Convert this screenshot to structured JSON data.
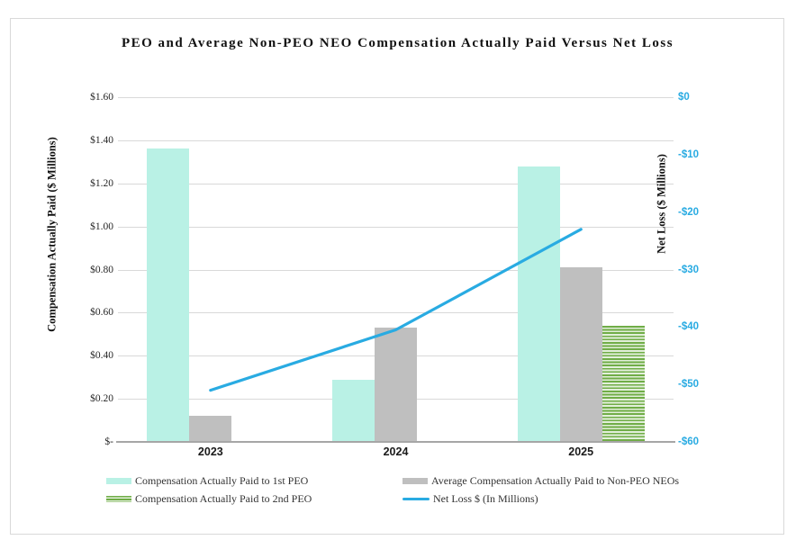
{
  "chart_data": {
    "type": "combo-bar-line",
    "title": "PEO and Average Non-PEO NEO Compensation Actually Paid Versus Net Loss",
    "categories": [
      "2023",
      "2024",
      "2025"
    ],
    "series": [
      {
        "key": "peo1",
        "name": "Compensation Actually Paid to 1st PEO",
        "type": "bar",
        "axis": "left",
        "color": "#B9F1E5",
        "values": [
          1.36,
          0.29,
          1.28
        ]
      },
      {
        "key": "nonpeo",
        "name": "Average Compensation Actually Paid to Non-PEO NEOs",
        "type": "bar",
        "axis": "left",
        "color": "#BFBFBF",
        "values": [
          0.12,
          0.53,
          0.81
        ]
      },
      {
        "key": "peo2",
        "name": "Compensation Actually Paid to 2nd PEO",
        "type": "bar",
        "axis": "left",
        "color": "#70AD47",
        "pattern": "horizontal-stripes",
        "pattern_bg": "#E2EFDA",
        "values": [
          0,
          0,
          0.54
        ]
      },
      {
        "key": "netloss",
        "name": "Net Loss $ (In Millions)",
        "type": "line",
        "axis": "right",
        "color": "#29ABE2",
        "values": [
          -51,
          -40.5,
          -23
        ]
      }
    ],
    "left_axis": {
      "label": "Compensation Actually Paid ($ Millions)",
      "range": [
        0,
        1.6
      ],
      "tick_labels": [
        "$1.60",
        "$1.40",
        "$1.20",
        "$1.00",
        "$0.80",
        "$0.60",
        "$0.40",
        "$0.20",
        "$-"
      ]
    },
    "right_axis": {
      "label": "Net Loss ($ Millions)",
      "range": [
        -60,
        0
      ],
      "tick_labels": [
        "$0",
        "-$10",
        "-$20",
        "-$30",
        "-$40",
        "-$50",
        "-$60"
      ]
    },
    "legend_position": "bottom",
    "grid": true
  },
  "colors": {
    "grid": "#D9D9D9",
    "axis_line": "#A6A6A6",
    "frame_border": "#D9D9D9",
    "right_tick_text": "#29ABE2",
    "text": "#1A1A1A"
  }
}
